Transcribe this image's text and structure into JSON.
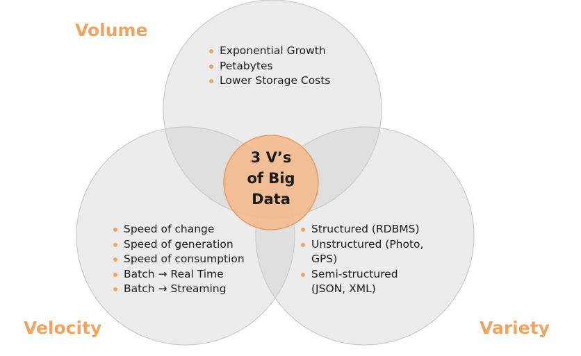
{
  "diagram": {
    "sets": [
      {
        "id": "volume",
        "title": "Volume",
        "items": [
          "Exponential Growth",
          "Petabytes",
          "Lower Storage Costs"
        ]
      },
      {
        "id": "velocity",
        "title": "Velocity",
        "items": [
          "Speed of change",
          "Speed of generation",
          "Speed of consumption",
          "Batch → Real Time",
          "Batch → Streaming"
        ]
      },
      {
        "id": "variety",
        "title": "Variety",
        "items": [
          "Structured (RDBMS)",
          "Unstructured (Photo,",
          "GPS)",
          "Semi-structured",
          "(JSON, XML)"
        ]
      }
    ],
    "center": {
      "lines": [
        "3 V’s",
        "of Big",
        "Data"
      ]
    }
  },
  "colors": {
    "accent": "#f0a460",
    "circle_fill": "#ececec",
    "circle_stroke": "#d0d0d0",
    "center_fill": "#f5b88a",
    "center_stroke": "#e59a5c",
    "text": "#1a1a1a"
  }
}
